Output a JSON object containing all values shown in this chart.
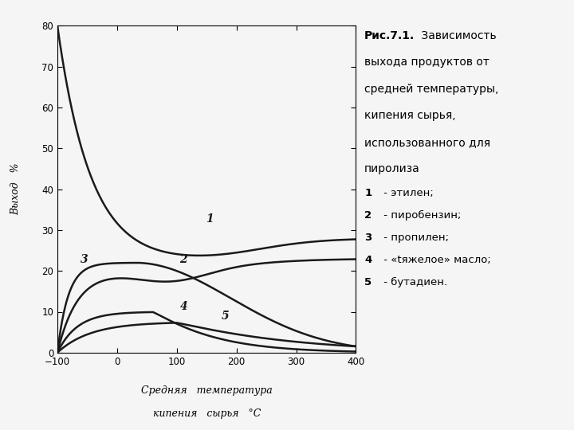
{
  "title_bold": "Рис.7.1.",
  "title_normal": " Зависимость\nвыхода продуктов от\nсредней температуры,\nкипения сырья,\nиспользованного для\nпиролиза",
  "legend_items": [
    [
      "1",
      " - этилен;"
    ],
    [
      "2",
      " - пиробензин;"
    ],
    [
      "3",
      " - пропилен;"
    ],
    [
      "4",
      " - «tяжелое» масло;"
    ],
    [
      "5",
      " - бутадиен."
    ]
  ],
  "xlabel_line1": "Средняя   температура",
  "xlabel_line2": "кипения   сырья   °С",
  "ylabel": "Выход   %",
  "xlim": [
    -100,
    400
  ],
  "ylim": [
    0,
    80
  ],
  "xticks": [
    -100,
    0,
    100,
    200,
    300,
    400
  ],
  "yticks": [
    0,
    10,
    20,
    30,
    40,
    50,
    60,
    70,
    80
  ],
  "background_color": "#f5f5f5",
  "curve_color": "#1a1a1a",
  "curve_lw": 1.8
}
